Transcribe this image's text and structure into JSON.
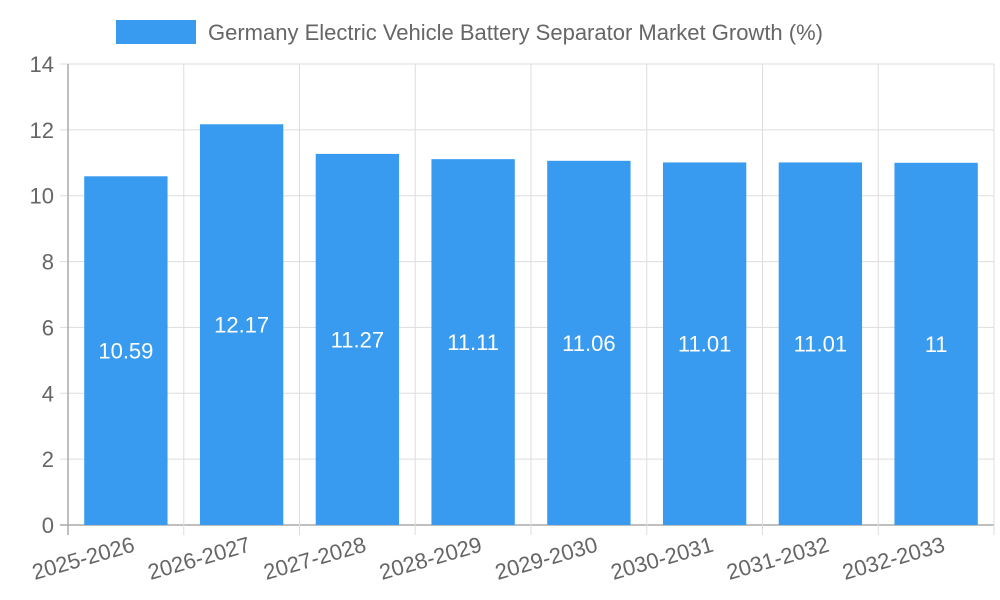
{
  "chart_data": {
    "type": "bar",
    "legend": {
      "position": "top",
      "entries": [
        {
          "label": "Germany Electric Vehicle Battery Separator Market Growth (%)",
          "color": "#389bef"
        }
      ]
    },
    "categories": [
      "2025-2026",
      "2026-2027",
      "2027-2028",
      "2028-2029",
      "2029-2030",
      "2030-2031",
      "2031-2032",
      "2032-2033"
    ],
    "series": [
      {
        "name": "Germany Electric Vehicle Battery Separator Market Growth (%)",
        "color": "#389bef",
        "values": [
          10.59,
          12.17,
          11.27,
          11.11,
          11.06,
          11.01,
          11.01,
          11
        ],
        "labels": [
          "10.59",
          "12.17",
          "11.27",
          "11.11",
          "11.06",
          "11.01",
          "11.01",
          "11"
        ]
      }
    ],
    "ylim": [
      0,
      14
    ],
    "yticks": [
      "0",
      "2",
      "4",
      "6",
      "8",
      "10",
      "12",
      "14"
    ],
    "grid": true
  }
}
